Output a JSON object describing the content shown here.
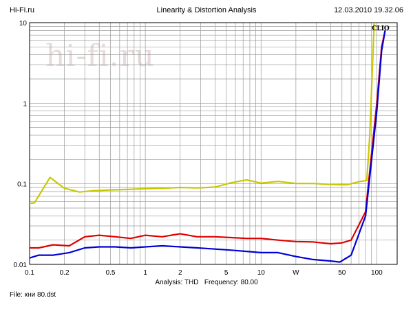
{
  "header": {
    "site": "Hi-Fi.ru",
    "title": "Linearity & Distortion Analysis",
    "datetime": "12.03.2010 19.32.06"
  },
  "watermark": "hi-fi.ru",
  "clio_badge": "CLIO",
  "footer": {
    "analysis_label": "Analysis:",
    "analysis_value": "THD",
    "frequency_label": "Frequency:",
    "frequency_value": "80.00",
    "file_label": "File:",
    "file_value": "кни 80.dst"
  },
  "chart_data": {
    "type": "line",
    "x_scale": "log",
    "y_scale": "log",
    "xlim": [
      0.1,
      150
    ],
    "ylim": [
      0.01,
      10
    ],
    "x_ticks": [
      "0.1",
      "0.2",
      "0.5",
      "1",
      "2",
      "5",
      "10",
      "W",
      "50",
      "100"
    ],
    "y_ticks": [
      "0.01",
      "0.1",
      "1",
      "10"
    ],
    "grid": true,
    "series": [
      {
        "color": "#c8c800",
        "x": [
          0.1,
          0.11,
          0.15,
          0.2,
          0.27,
          0.35,
          0.5,
          0.7,
          1,
          1.4,
          2,
          2.8,
          4,
          5.5,
          7.5,
          10,
          14,
          20,
          28,
          40,
          55,
          70,
          82,
          87,
          95
        ],
        "y": [
          0.057,
          0.058,
          0.12,
          0.088,
          0.079,
          0.082,
          0.084,
          0.085,
          0.087,
          0.088,
          0.09,
          0.089,
          0.091,
          0.103,
          0.112,
          0.102,
          0.107,
          0.101,
          0.101,
          0.098,
          0.097,
          0.106,
          0.11,
          0.4,
          10
        ]
      },
      {
        "color": "#e00000",
        "x": [
          0.1,
          0.12,
          0.16,
          0.22,
          0.3,
          0.4,
          0.55,
          0.75,
          1,
          1.4,
          2,
          2.8,
          4,
          5.5,
          7.5,
          10,
          14,
          20,
          28,
          40,
          50,
          60,
          80,
          100,
          110,
          118
        ],
        "y": [
          0.016,
          0.016,
          0.0175,
          0.017,
          0.022,
          0.023,
          0.022,
          0.021,
          0.023,
          0.022,
          0.024,
          0.022,
          0.022,
          0.0215,
          0.021,
          0.021,
          0.02,
          0.0192,
          0.019,
          0.018,
          0.0185,
          0.02,
          0.045,
          1,
          5,
          8
        ]
      },
      {
        "color": "#0000d8",
        "x": [
          0.1,
          0.12,
          0.16,
          0.22,
          0.3,
          0.4,
          0.55,
          0.75,
          1,
          1.4,
          2,
          2.8,
          4,
          5.5,
          7.5,
          10,
          14,
          20,
          28,
          40,
          48,
          60,
          80,
          100,
          110,
          118
        ],
        "y": [
          0.012,
          0.013,
          0.013,
          0.014,
          0.016,
          0.0165,
          0.0165,
          0.016,
          0.0165,
          0.017,
          0.0165,
          0.016,
          0.0155,
          0.015,
          0.0145,
          0.014,
          0.014,
          0.0125,
          0.0115,
          0.011,
          0.0107,
          0.013,
          0.04,
          0.8,
          4.5,
          8
        ]
      }
    ]
  }
}
